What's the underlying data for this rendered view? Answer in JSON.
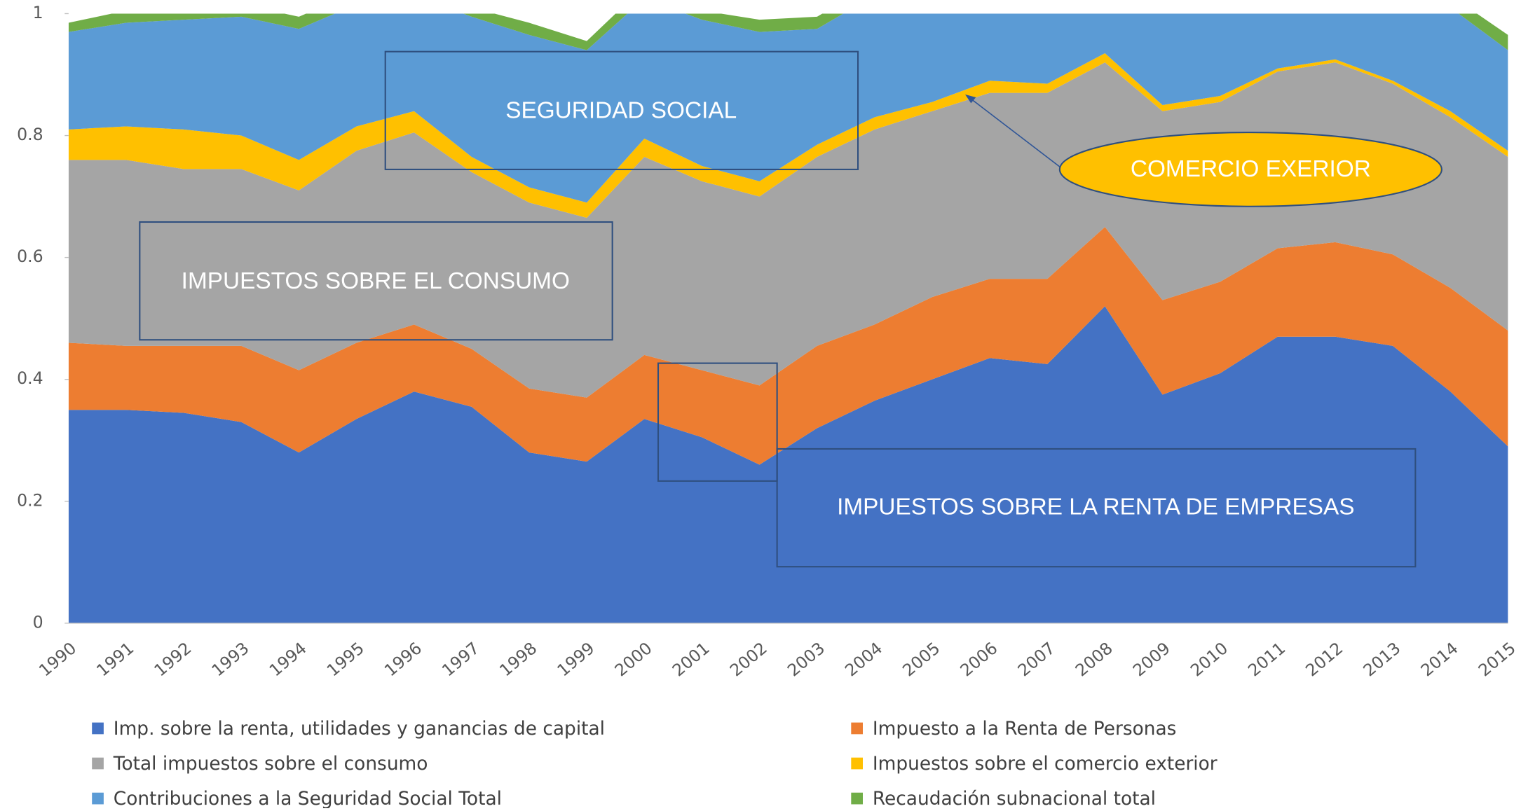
{
  "chart_data": {
    "type": "stacked_area",
    "categories": [
      "1990",
      "1991",
      "1992",
      "1993",
      "1994",
      "1995",
      "1996",
      "1997",
      "1998",
      "1999",
      "2000",
      "2001",
      "2002",
      "2003",
      "2004",
      "2005",
      "2006",
      "2007",
      "2008",
      "2009",
      "2010",
      "2011",
      "2012",
      "2013",
      "2014",
      "2015"
    ],
    "series": [
      {
        "name": "Imp. sobre la renta, utilidades y ganancias de capital",
        "color": "#4472c4",
        "values": [
          0.35,
          0.35,
          0.345,
          0.33,
          0.28,
          0.335,
          0.38,
          0.355,
          0.28,
          0.265,
          0.335,
          0.305,
          0.26,
          0.32,
          0.365,
          0.4,
          0.435,
          0.425,
          0.52,
          0.375,
          0.41,
          0.47,
          0.47,
          0.455,
          0.38,
          0.29
        ]
      },
      {
        "name": "Impuesto a la Renta de Personas",
        "color": "#ed7d31",
        "values": [
          0.11,
          0.105,
          0.11,
          0.125,
          0.135,
          0.125,
          0.11,
          0.095,
          0.105,
          0.105,
          0.105,
          0.11,
          0.13,
          0.135,
          0.125,
          0.135,
          0.13,
          0.14,
          0.13,
          0.155,
          0.15,
          0.145,
          0.155,
          0.15,
          0.17,
          0.19
        ]
      },
      {
        "name": "Total impuestos sobre el consumo",
        "color": "#a5a5a5",
        "values": [
          0.3,
          0.305,
          0.29,
          0.29,
          0.295,
          0.315,
          0.315,
          0.29,
          0.305,
          0.295,
          0.325,
          0.31,
          0.31,
          0.31,
          0.32,
          0.305,
          0.305,
          0.305,
          0.27,
          0.31,
          0.295,
          0.29,
          0.295,
          0.28,
          0.28,
          0.285
        ]
      },
      {
        "name": "Impuestos sobre el comercio exterior",
        "color": "#ffc000",
        "values": [
          0.05,
          0.055,
          0.065,
          0.055,
          0.05,
          0.04,
          0.035,
          0.025,
          0.025,
          0.025,
          0.03,
          0.025,
          0.025,
          0.02,
          0.02,
          0.015,
          0.02,
          0.015,
          0.015,
          0.01,
          0.01,
          0.005,
          0.005,
          0.005,
          0.01,
          0.01
        ]
      },
      {
        "name": "Contribuciones a la Seguridad Social Total",
        "color": "#5b9bd5",
        "values": [
          0.16,
          0.17,
          0.18,
          0.195,
          0.215,
          0.2,
          0.19,
          0.23,
          0.25,
          0.25,
          0.23,
          0.24,
          0.245,
          0.19,
          0.2,
          0.17,
          0.14,
          0.14,
          0.1,
          0.18,
          0.17,
          0.13,
          0.12,
          0.15,
          0.17,
          0.165
        ]
      },
      {
        "name": "Recaudación subnacional total",
        "color": "#70ad47",
        "values": [
          0.015,
          0.02,
          0.02,
          0.02,
          0.02,
          0.02,
          0.02,
          0.015,
          0.02,
          0.015,
          0.02,
          0.015,
          0.02,
          0.02,
          0.02,
          0.02,
          0.02,
          0.02,
          0.02,
          0.02,
          0.02,
          0.02,
          0.02,
          0.02,
          0.02,
          0.025
        ]
      }
    ],
    "ylim": [
      0,
      1
    ],
    "yticks": [
      0,
      0.2,
      0.4,
      0.6,
      0.8,
      1
    ],
    "legend": "bottom",
    "annotations": [
      "SEGURIDAD SOCIAL",
      "COMERCIO EXERIOR",
      "IMPUESTOS SOBRE EL CONSUMO",
      "IMPUESTOS SOBRE LA RENTA DE EMPRESAS"
    ]
  }
}
